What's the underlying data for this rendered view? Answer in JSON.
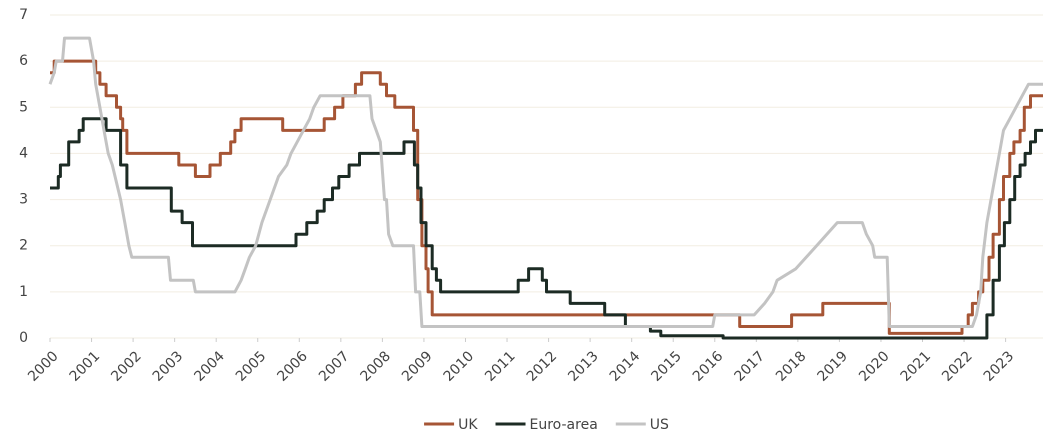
{
  "chart_data": {
    "type": "line",
    "grid": true,
    "legend": "bottom",
    "xlim": [
      2000,
      2023.9
    ],
    "xticks": [
      2000,
      2001,
      2002,
      2003,
      2004,
      2005,
      2006,
      2007,
      2008,
      2009,
      2010,
      2011,
      2012,
      2013,
      2014,
      2015,
      2016,
      2017,
      2018,
      2019,
      2020,
      2021,
      2022,
      2023
    ],
    "ylim": [
      0,
      7
    ],
    "yticks": [
      0,
      1,
      2,
      3,
      4,
      5,
      6,
      7
    ],
    "series": [
      {
        "name": "UK",
        "color": "#a65535",
        "x": [
          2000,
          2000.1,
          2000.1,
          2001.1,
          2001.1,
          2001.2,
          2001.2,
          2001.35,
          2001.35,
          2001.6,
          2001.6,
          2001.7,
          2001.7,
          2001.75,
          2001.75,
          2001.85,
          2001.85,
          2003.1,
          2003.1,
          2003.5,
          2003.5,
          2003.85,
          2003.85,
          2004.1,
          2004.1,
          2004.35,
          2004.35,
          2004.45,
          2004.45,
          2004.6,
          2004.6,
          2005.6,
          2005.6,
          2006.6,
          2006.6,
          2006.85,
          2006.85,
          2007.05,
          2007.05,
          2007.35,
          2007.35,
          2007.5,
          2007.5,
          2007.95,
          2007.95,
          2008.1,
          2008.1,
          2008.3,
          2008.3,
          2008.75,
          2008.75,
          2008.85,
          2008.85,
          2008.95,
          2008.95,
          2009.05,
          2009.05,
          2009.1,
          2009.1,
          2009.2,
          2009.2,
          2016.6,
          2016.6,
          2017.85,
          2017.85,
          2018.6,
          2018.6,
          2020.2,
          2020.2,
          2021.95,
          2021.95,
          2022.1,
          2022.1,
          2022.2,
          2022.2,
          2022.35,
          2022.35,
          2022.45,
          2022.45,
          2022.6,
          2022.6,
          2022.7,
          2022.7,
          2022.85,
          2022.85,
          2022.95,
          2022.95,
          2023.1,
          2023.1,
          2023.2,
          2023.2,
          2023.35,
          2023.35,
          2023.45,
          2023.45,
          2023.6,
          2023.6,
          2023.9
        ],
        "values": [
          5.75,
          5.75,
          6,
          6,
          5.75,
          5.75,
          5.5,
          5.5,
          5.25,
          5.25,
          5,
          5,
          4.75,
          4.75,
          4.5,
          4.5,
          4,
          4,
          3.75,
          3.75,
          3.5,
          3.5,
          3.75,
          3.75,
          4,
          4,
          4.25,
          4.25,
          4.5,
          4.5,
          4.75,
          4.75,
          4.5,
          4.5,
          4.75,
          4.75,
          5,
          5,
          5.25,
          5.25,
          5.5,
          5.5,
          5.75,
          5.75,
          5.5,
          5.5,
          5.25,
          5.25,
          5,
          5,
          4.5,
          4.5,
          3,
          3,
          2,
          2,
          1.5,
          1.5,
          1,
          1,
          0.5,
          0.5,
          0.25,
          0.25,
          0.5,
          0.5,
          0.75,
          0.75,
          0.1,
          0.1,
          0.25,
          0.25,
          0.5,
          0.5,
          0.75,
          0.75,
          1,
          1,
          1.25,
          1.25,
          1.75,
          1.75,
          2.25,
          2.25,
          3,
          3,
          3.5,
          3.5,
          4,
          4,
          4.25,
          4.25,
          4.5,
          4.5,
          5,
          5,
          5.25,
          5.25
        ]
      },
      {
        "name": "Euro-area",
        "color": "#1c2b24",
        "x": [
          2000,
          2000.2,
          2000.2,
          2000.25,
          2000.25,
          2000.45,
          2000.45,
          2000.7,
          2000.7,
          2000.8,
          2000.8,
          2001.35,
          2001.35,
          2001.7,
          2001.7,
          2001.85,
          2001.85,
          2002.92,
          2002.92,
          2003.18,
          2003.18,
          2003.43,
          2003.43,
          2005.92,
          2005.92,
          2006.18,
          2006.18,
          2006.43,
          2006.43,
          2006.6,
          2006.6,
          2006.8,
          2006.8,
          2006.95,
          2006.95,
          2007.2,
          2007.2,
          2007.45,
          2007.45,
          2008.52,
          2008.52,
          2008.77,
          2008.77,
          2008.85,
          2008.85,
          2008.93,
          2008.93,
          2009.05,
          2009.05,
          2009.2,
          2009.2,
          2009.3,
          2009.3,
          2009.4,
          2009.4,
          2011.27,
          2011.27,
          2011.52,
          2011.52,
          2011.85,
          2011.85,
          2011.95,
          2011.95,
          2012.52,
          2012.52,
          2013.35,
          2013.35,
          2013.85,
          2013.85,
          2014.45,
          2014.45,
          2014.7,
          2014.7,
          2016.2,
          2016.2,
          2022.55,
          2022.55,
          2022.7,
          2022.7,
          2022.85,
          2022.85,
          2022.97,
          2022.97,
          2023.1,
          2023.1,
          2023.22,
          2023.22,
          2023.35,
          2023.35,
          2023.47,
          2023.47,
          2023.6,
          2023.6,
          2023.72,
          2023.72,
          2023.9
        ],
        "values": [
          3.25,
          3.25,
          3.5,
          3.5,
          3.75,
          3.75,
          4.25,
          4.25,
          4.5,
          4.5,
          4.75,
          4.75,
          4.5,
          4.5,
          3.75,
          3.75,
          3.25,
          3.25,
          2.75,
          2.75,
          2.5,
          2.5,
          2,
          2,
          2.25,
          2.25,
          2.5,
          2.5,
          2.75,
          2.75,
          3,
          3,
          3.25,
          3.25,
          3.5,
          3.5,
          3.75,
          3.75,
          4,
          4,
          4.25,
          4.25,
          3.75,
          3.75,
          3.25,
          3.25,
          2.5,
          2.5,
          2,
          2,
          1.5,
          1.5,
          1.25,
          1.25,
          1,
          1,
          1.25,
          1.25,
          1.5,
          1.5,
          1.25,
          1.25,
          1,
          1,
          0.75,
          0.75,
          0.5,
          0.5,
          0.25,
          0.25,
          0.15,
          0.15,
          0.05,
          0.05,
          0,
          0,
          0.5,
          0.5,
          1.25,
          1.25,
          2,
          2,
          2.5,
          2.5,
          3,
          3,
          3.5,
          3.5,
          3.75,
          3.75,
          4,
          4,
          4.25,
          4.25,
          4.5,
          4.5
        ]
      },
      {
        "name": "US",
        "color": "#c3c3c3",
        "x": [
          2000,
          2000.1,
          2000.15,
          2000.3,
          2000.35,
          2000.95,
          2001.05,
          2001.1,
          2001.2,
          2001.3,
          2001.4,
          2001.5,
          2001.7,
          2001.8,
          2001.9,
          2001.97,
          2002.85,
          2002.9,
          2003.45,
          2003.5,
          2004.45,
          2004.6,
          2004.7,
          2004.8,
          2004.95,
          2005.1,
          2005.3,
          2005.5,
          2005.7,
          2005.8,
          2005.95,
          2006.1,
          2006.25,
          2006.35,
          2006.5,
          2007.7,
          2007.75,
          2007.85,
          2007.95,
          2008.05,
          2008.1,
          2008.15,
          2008.25,
          2008.75,
          2008.8,
          2008.9,
          2008.95,
          2015.95,
          2016,
          2016.95,
          2017.2,
          2017.4,
          2017.5,
          2017.95,
          2018.2,
          2018.45,
          2018.7,
          2018.95,
          2019.55,
          2019.65,
          2019.8,
          2019.85,
          2020.15,
          2020.2,
          2022.2,
          2022.3,
          2022.4,
          2022.45,
          2022.55,
          2022.7,
          2022.85,
          2022.95,
          2023.1,
          2023.25,
          2023.4,
          2023.55,
          2023.9
        ],
        "values": [
          5.5,
          5.75,
          6,
          6,
          6.5,
          6.5,
          6,
          5.5,
          5,
          4.5,
          4,
          3.75,
          3,
          2.5,
          2,
          1.75,
          1.75,
          1.25,
          1.25,
          1,
          1,
          1.25,
          1.5,
          1.75,
          2,
          2.5,
          3,
          3.5,
          3.75,
          4,
          4.25,
          4.5,
          4.75,
          5,
          5.25,
          5.25,
          4.75,
          4.5,
          4.25,
          3,
          3,
          2.25,
          2,
          2,
          1,
          1,
          0.25,
          0.25,
          0.5,
          0.5,
          0.75,
          1,
          1.25,
          1.5,
          1.75,
          2,
          2.25,
          2.5,
          2.5,
          2.25,
          2,
          1.75,
          1.75,
          0.25,
          0.25,
          0.5,
          1,
          1.75,
          2.5,
          3.25,
          4,
          4.5,
          4.75,
          5,
          5.25,
          5.5,
          5.5
        ]
      }
    ]
  }
}
